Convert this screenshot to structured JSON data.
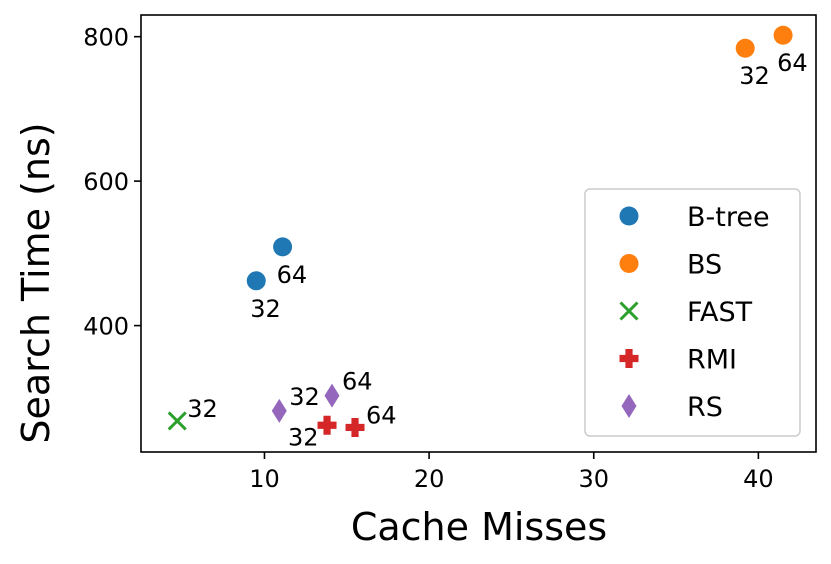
{
  "chart_data": {
    "type": "scatter",
    "title": "",
    "xlabel": "Cache Misses",
    "ylabel": "Search Time (ns)",
    "xlim": [
      2.5,
      43.5
    ],
    "ylim": [
      225,
      830
    ],
    "xticks": [
      10,
      20,
      30,
      40
    ],
    "yticks": [
      400,
      600,
      800
    ],
    "grid": false,
    "legend_position": "lower-right",
    "series": [
      {
        "name": "B-tree",
        "marker": "circle",
        "color": "#1f77b4",
        "points": [
          {
            "x": 9.5,
            "y": 462,
            "label": "32"
          },
          {
            "x": 11.1,
            "y": 509,
            "label": "64"
          }
        ]
      },
      {
        "name": "BS",
        "marker": "circle",
        "color": "#ff7f0e",
        "points": [
          {
            "x": 39.2,
            "y": 784,
            "label": "32"
          },
          {
            "x": 41.5,
            "y": 802,
            "label": "64"
          }
        ]
      },
      {
        "name": "FAST",
        "marker": "x",
        "color": "#2ca02c",
        "points": [
          {
            "x": 4.7,
            "y": 268,
            "label": "32"
          }
        ]
      },
      {
        "name": "RMI",
        "marker": "plus",
        "color": "#d62728",
        "points": [
          {
            "x": 13.8,
            "y": 262,
            "label": "32"
          },
          {
            "x": 15.5,
            "y": 259,
            "label": "64"
          }
        ]
      },
      {
        "name": "RS",
        "marker": "diamond",
        "color": "#9467bd",
        "points": [
          {
            "x": 10.9,
            "y": 282,
            "label": "32"
          },
          {
            "x": 14.1,
            "y": 303,
            "label": "64"
          }
        ]
      }
    ]
  }
}
